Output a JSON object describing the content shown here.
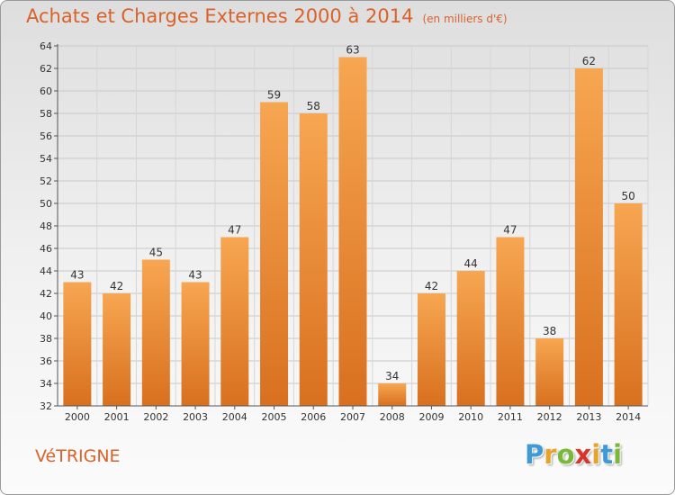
{
  "chart_data": {
    "type": "bar",
    "title": "Achats et Charges Externes 2000 à 2014",
    "subtitle": "(en milliers d'€)",
    "categories": [
      "2000",
      "2001",
      "2002",
      "2003",
      "2004",
      "2005",
      "2006",
      "2007",
      "2008",
      "2009",
      "2010",
      "2011",
      "2012",
      "2013",
      "2014"
    ],
    "values": [
      43,
      42,
      45,
      43,
      47,
      59,
      58,
      63,
      34,
      42,
      44,
      47,
      38,
      62,
      50
    ],
    "ylim": [
      32,
      64
    ],
    "yticks": [
      32,
      34,
      36,
      38,
      40,
      42,
      44,
      46,
      48,
      50,
      52,
      54,
      56,
      58,
      60,
      62,
      64
    ],
    "xlabel": "",
    "ylabel": "",
    "grid": true,
    "bar_color_top": "#f7a651",
    "bar_color_bottom": "#d8701f",
    "axis_color": "#555555"
  },
  "footer": {
    "commune": "VéTRIGNE"
  },
  "brand": {
    "letters": [
      "P",
      "r",
      "o",
      "x",
      "i",
      "t",
      "i"
    ],
    "colors": [
      "#3d9ad6",
      "#e8a42a",
      "#7ab83a",
      "#d9362b",
      "#e8a42a",
      "#3d9ad6",
      "#7ab83a"
    ]
  }
}
